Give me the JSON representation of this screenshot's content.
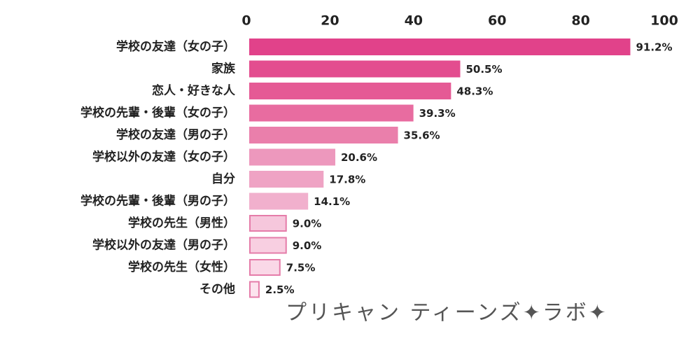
{
  "chart_data": {
    "type": "bar",
    "orientation": "horizontal",
    "categories": [
      "学校の友達（女の子）",
      "家族",
      "恋人・好きな人",
      "学校の先輩・後輩（女の子）",
      "学校の友達（男の子）",
      "学校以外の友達（女の子）",
      "自分",
      "学校の先輩・後輩（男の子）",
      "学校の先生（男性）",
      "学校以外の友達（男の子）",
      "学校の先生（女性）",
      "その他"
    ],
    "values": [
      91.2,
      50.5,
      48.3,
      39.3,
      35.6,
      20.6,
      17.8,
      14.1,
      9.0,
      9.0,
      7.5,
      2.5
    ],
    "value_labels": [
      "91.2%",
      "50.5%",
      "48.3%",
      "39.3%",
      "35.6%",
      "20.6%",
      "17.8%",
      "14.1%",
      "9.0%",
      "9.0%",
      "7.5%",
      "2.5%"
    ],
    "colors": [
      "#e1428a",
      "#e34d8f",
      "#e55a95",
      "#e86ca0",
      "#ea7fab",
      "#ed98bd",
      "#efa3c4",
      "#f1b0cd",
      "#f6c7dc",
      "#f8cfe1",
      "#fad8e7",
      "#fce4ee"
    ],
    "edge_colors": [
      "#e1428a",
      "#e34d8f",
      "#e55a95",
      "#e86ca0",
      "#ea7fab",
      "#ed98bd",
      "#efa3c4",
      "#f1b0cd",
      "#e57ca9",
      "#e57ca9",
      "#e57ca9",
      "#e57ca9"
    ],
    "xlim": [
      0,
      100
    ],
    "xticks": [
      0,
      20,
      40,
      60,
      80,
      100
    ],
    "watermark": "プリキャン ティーンズ✦ラボ✦"
  }
}
